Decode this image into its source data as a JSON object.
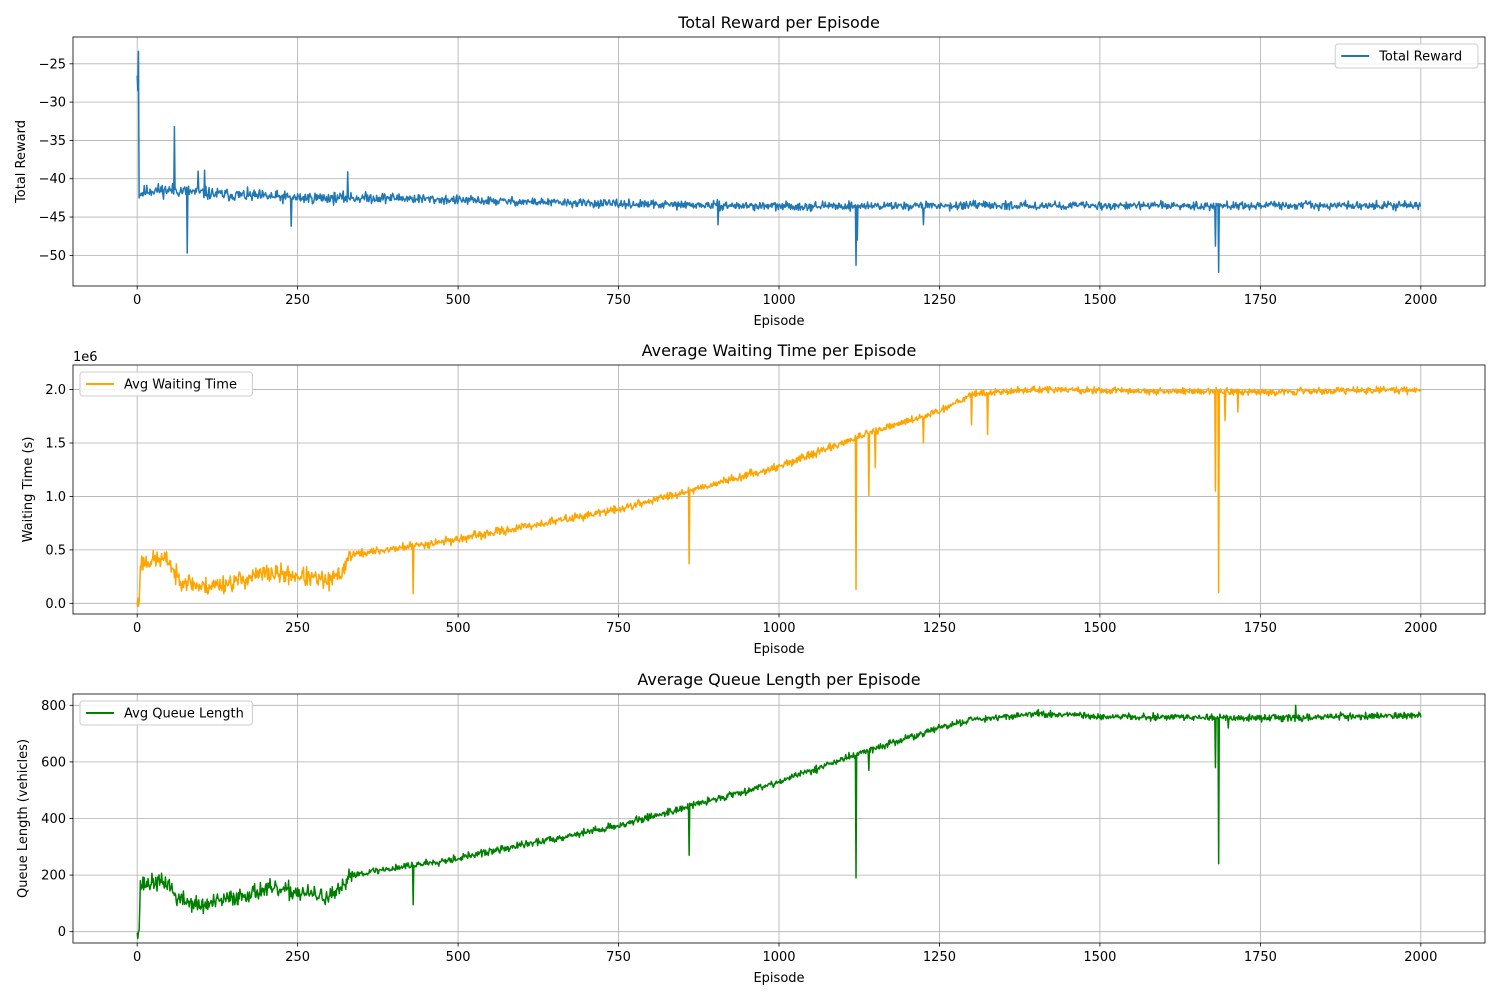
{
  "chart_data": [
    {
      "type": "line",
      "title": "Total Reward per Episode",
      "xlabel": "Episode",
      "ylabel": "Total Reward",
      "xlim": [
        -100,
        2100
      ],
      "ylim": [
        -54,
        -21.5
      ],
      "xticks": [
        0,
        250,
        500,
        750,
        1000,
        1250,
        1500,
        1750,
        2000
      ],
      "xtick_labels": [
        "0",
        "250",
        "500",
        "750",
        "1000",
        "1250",
        "1500",
        "1750",
        "2000"
      ],
      "yticks": [
        -25,
        -30,
        -35,
        -40,
        -45,
        -50
      ],
      "ytick_labels": [
        "−25",
        "−30",
        "−35",
        "−40",
        "−45",
        "−50"
      ],
      "grid": true,
      "legend_position": "upper right",
      "series": [
        {
          "name": "Total Reward",
          "color": "#1f77b4",
          "anchors": [
            [
              0,
              -26
            ],
            [
              2,
              -23.5
            ],
            [
              3,
              -42
            ],
            [
              20,
              -41.5
            ],
            [
              60,
              -41.5
            ],
            [
              120,
              -42
            ],
            [
              250,
              -42.5
            ],
            [
              400,
              -42.5
            ],
            [
              500,
              -42.8
            ],
            [
              750,
              -43.3
            ],
            [
              1000,
              -43.6
            ],
            [
              1250,
              -43.5
            ],
            [
              1500,
              -43.5
            ],
            [
              1750,
              -43.5
            ],
            [
              2000,
              -43.5
            ]
          ],
          "noise": [
            [
              0,
              1.3
            ],
            [
              300,
              1.1
            ],
            [
              600,
              0.8
            ],
            [
              2000,
              0.75
            ]
          ],
          "spikes": [
            [
              1,
              -28.5
            ],
            [
              58,
              -33.2
            ],
            [
              78,
              -49.7
            ],
            [
              95,
              -39
            ],
            [
              105,
              -38.9
            ],
            [
              240,
              -46.2
            ],
            [
              328,
              -39.1
            ],
            [
              905,
              -46
            ],
            [
              1120,
              -51.3
            ],
            [
              1122,
              -48
            ],
            [
              1225,
              -46
            ],
            [
              1680,
              -48.8
            ],
            [
              1685,
              -52.2
            ]
          ],
          "seed": 11
        }
      ]
    },
    {
      "type": "line",
      "title": "Average Waiting Time per Episode",
      "xlabel": "Episode",
      "ylabel": "Waiting Time (s)",
      "scale_label": "1e6",
      "xlim": [
        -100,
        2100
      ],
      "ylim": [
        -100000,
        2230000
      ],
      "xticks": [
        0,
        250,
        500,
        750,
        1000,
        1250,
        1500,
        1750,
        2000
      ],
      "xtick_labels": [
        "0",
        "250",
        "500",
        "750",
        "1000",
        "1250",
        "1500",
        "1750",
        "2000"
      ],
      "yticks": [
        0,
        500000,
        1000000,
        1500000,
        2000000
      ],
      "ytick_labels": [
        "0.0",
        "0.5",
        "1.0",
        "1.5",
        "2.0"
      ],
      "grid": true,
      "legend_position": "upper left",
      "series": [
        {
          "name": "Avg Waiting Time",
          "color": "#ffa500",
          "anchors": [
            [
              0,
              0
            ],
            [
              3,
              0
            ],
            [
              5,
              380000
            ],
            [
              30,
              410000
            ],
            [
              50,
              400000
            ],
            [
              60,
              250000
            ],
            [
              100,
              150000
            ],
            [
              150,
              200000
            ],
            [
              200,
              280000
            ],
            [
              250,
              260000
            ],
            [
              300,
              200000
            ],
            [
              320,
              300000
            ],
            [
              330,
              450000
            ],
            [
              500,
              600000
            ],
            [
              750,
              880000
            ],
            [
              1000,
              1280000
            ],
            [
              1125,
              1560000
            ],
            [
              1250,
              1800000
            ],
            [
              1300,
              1960000
            ],
            [
              1400,
              2000000
            ],
            [
              1500,
              1990000
            ],
            [
              1750,
              1980000
            ],
            [
              2000,
              2000000
            ]
          ],
          "noise": [
            [
              0,
              130000
            ],
            [
              320,
              130000
            ],
            [
              340,
              60000
            ],
            [
              1300,
              50000
            ],
            [
              2000,
              50000
            ]
          ],
          "spikes": [
            [
              430,
              90000
            ],
            [
              860,
              370000
            ],
            [
              1120,
              130000
            ],
            [
              1140,
              1010000
            ],
            [
              1150,
              1270000
            ],
            [
              1225,
              1500000
            ],
            [
              1300,
              1670000
            ],
            [
              1325,
              1580000
            ],
            [
              1680,
              1050000
            ],
            [
              1685,
              100000
            ],
            [
              1695,
              1710000
            ],
            [
              1715,
              1790000
            ]
          ],
          "seed": 23
        }
      ]
    },
    {
      "type": "line",
      "title": "Average Queue Length per Episode",
      "xlabel": "Episode",
      "ylabel": "Queue Length (vehicles)",
      "xlim": [
        -100,
        2100
      ],
      "ylim": [
        -40,
        840
      ],
      "xticks": [
        0,
        250,
        500,
        750,
        1000,
        1250,
        1500,
        1750,
        2000
      ],
      "xtick_labels": [
        "0",
        "250",
        "500",
        "750",
        "1000",
        "1250",
        "1500",
        "1750",
        "2000"
      ],
      "yticks": [
        0,
        200,
        400,
        600,
        800
      ],
      "ytick_labels": [
        "0",
        "200",
        "400",
        "600",
        "800"
      ],
      "grid": true,
      "legend_position": "upper left",
      "series": [
        {
          "name": "Avg Queue Length",
          "color": "#008000",
          "anchors": [
            [
              0,
              10
            ],
            [
              3,
              10
            ],
            [
              5,
              165
            ],
            [
              30,
              175
            ],
            [
              50,
              170
            ],
            [
              60,
              120
            ],
            [
              100,
              90
            ],
            [
              150,
              120
            ],
            [
              200,
              150
            ],
            [
              250,
              140
            ],
            [
              300,
              120
            ],
            [
              320,
              150
            ],
            [
              330,
              200
            ],
            [
              500,
              260
            ],
            [
              750,
              375
            ],
            [
              1000,
              530
            ],
            [
              1125,
              630
            ],
            [
              1250,
              720
            ],
            [
              1300,
              750
            ],
            [
              1400,
              770
            ],
            [
              1500,
              760
            ],
            [
              1750,
              755
            ],
            [
              2000,
              765
            ]
          ],
          "noise": [
            [
              0,
              45
            ],
            [
              320,
              45
            ],
            [
              340,
              20
            ],
            [
              1300,
              18
            ],
            [
              2000,
              18
            ]
          ],
          "spikes": [
            [
              430,
              95
            ],
            [
              860,
              270
            ],
            [
              1120,
              190
            ],
            [
              1140,
              570
            ],
            [
              1680,
              580
            ],
            [
              1685,
              240
            ],
            [
              1700,
              720
            ],
            [
              1805,
              800
            ]
          ],
          "seed": 37
        }
      ]
    }
  ]
}
